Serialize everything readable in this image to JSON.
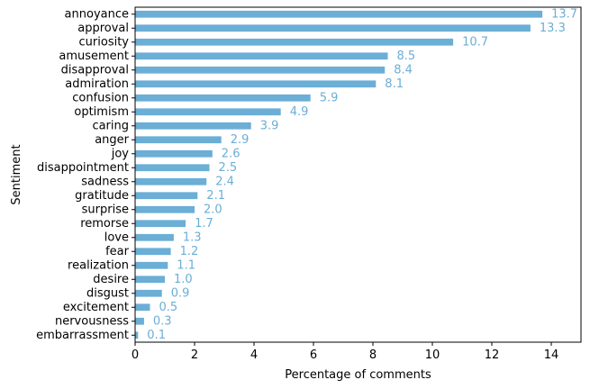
{
  "chart_data": {
    "type": "bar",
    "orientation": "horizontal",
    "xlabel": "Percentage of comments",
    "ylabel": "Sentiment",
    "xlim": [
      0,
      15
    ],
    "xticks": [
      0,
      2,
      4,
      6,
      8,
      10,
      12,
      14
    ],
    "grid": false,
    "legend": "none",
    "bar_color": "#6baed6",
    "label_color": "#6baed6",
    "categories": [
      "annoyance",
      "approval",
      "curiosity",
      "amusement",
      "disapproval",
      "admiration",
      "confusion",
      "optimism",
      "caring",
      "anger",
      "joy",
      "disappointment",
      "sadness",
      "gratitude",
      "surprise",
      "remorse",
      "love",
      "fear",
      "realization",
      "desire",
      "disgust",
      "excitement",
      "nervousness",
      "embarrassment"
    ],
    "values": [
      13.7,
      13.3,
      10.7,
      8.5,
      8.4,
      8.1,
      5.9,
      4.9,
      3.9,
      2.9,
      2.6,
      2.5,
      2.4,
      2.1,
      2.0,
      1.7,
      1.3,
      1.2,
      1.1,
      1.0,
      0.9,
      0.5,
      0.3,
      0.1
    ],
    "value_labels": [
      "13.7",
      "13.3",
      "10.7",
      "8.5",
      "8.4",
      "8.1",
      "5.9",
      "4.9",
      "3.9",
      "2.9",
      "2.6",
      "2.5",
      "2.4",
      "2.1",
      "2.0",
      "1.7",
      "1.3",
      "1.2",
      "1.1",
      "1.0",
      "0.9",
      "0.5",
      "0.3",
      "0.1"
    ]
  }
}
